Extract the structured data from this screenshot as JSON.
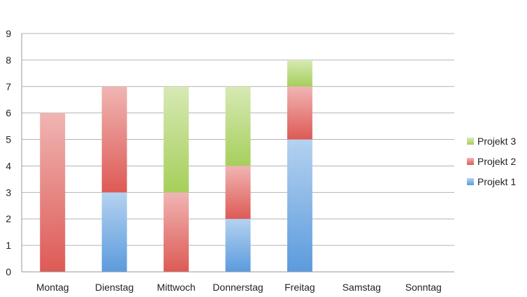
{
  "chart_data": {
    "type": "bar",
    "stacked": true,
    "categories": [
      "Montag",
      "Dienstag",
      "Mittwoch",
      "Donnerstag",
      "Freitag",
      "Samstag",
      "Sonntag"
    ],
    "series": [
      {
        "name": "Projekt 1",
        "values": [
          0,
          3,
          0,
          2,
          5,
          0,
          0
        ],
        "color": "#5b9bdd"
      },
      {
        "name": "Projekt 2",
        "values": [
          6,
          4,
          3,
          2,
          2,
          0,
          0
        ],
        "color": "#dd5a55"
      },
      {
        "name": "Projekt 3",
        "values": [
          0,
          0,
          4,
          3,
          1,
          0,
          0
        ],
        "color": "#a6cf5b"
      }
    ],
    "y_ticks": [
      "0",
      "1",
      "2",
      "3",
      "4",
      "5",
      "6",
      "7",
      "8",
      "9"
    ],
    "ylim": [
      0,
      9
    ],
    "grid": true,
    "legend_position": "right",
    "legend_order": [
      "Projekt 3",
      "Projekt 2",
      "Projekt 1"
    ],
    "title": "",
    "xlabel": "",
    "ylabel": ""
  }
}
